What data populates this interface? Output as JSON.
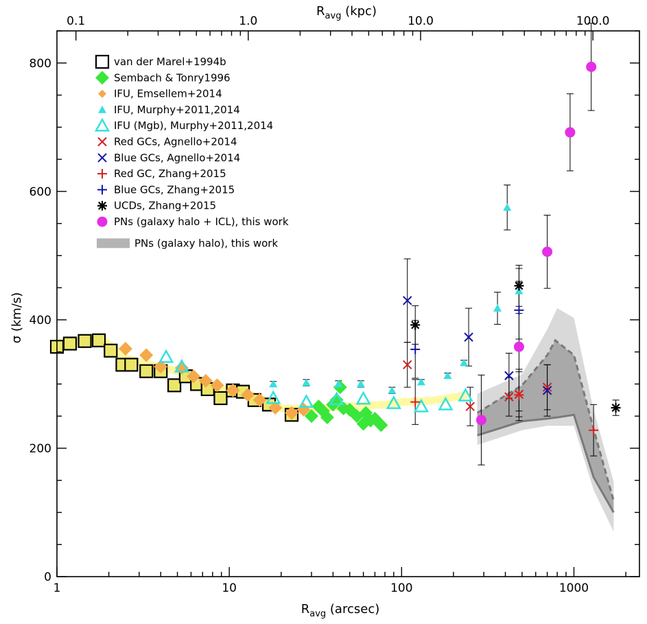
{
  "chart_data": {
    "type": "scatter",
    "title": "",
    "xlabel": "R_avg (arcsec)",
    "xlabel_parts": {
      "main": "R",
      "sub": "avg",
      "unit": " (arcsec)"
    },
    "x2label": "R_avg (kpc)",
    "x2label_parts": {
      "main": "R",
      "sub": "avg",
      "unit": " (kpc)"
    },
    "ylabel": "σ (km/s)",
    "x_scale": "log",
    "xlim": [
      1,
      2400
    ],
    "ylim": [
      0,
      850
    ],
    "x2_scale": "log",
    "x2_per_x": 0.0776,
    "x_ticks": [
      {
        "value": 1,
        "label": "1"
      },
      {
        "value": 10,
        "label": "10"
      },
      {
        "value": 100,
        "label": "100"
      },
      {
        "value": 1000,
        "label": "1000"
      }
    ],
    "x2_ticks": [
      {
        "value": 0.1,
        "label": "0.1"
      },
      {
        "value": 1.0,
        "label": "1.0"
      },
      {
        "value": 10.0,
        "label": "10.0"
      },
      {
        "value": 100.0,
        "label": "100.0"
      }
    ],
    "y_ticks": [
      {
        "value": 0,
        "label": "0"
      },
      {
        "value": 200,
        "label": "200"
      },
      {
        "value": 400,
        "label": "400"
      },
      {
        "value": 600,
        "label": "600"
      },
      {
        "value": 800,
        "label": "800"
      }
    ],
    "y_minor_step": 50,
    "grid": false,
    "legend_position": "top-left",
    "bands": [
      {
        "name": "PNs (galaxy halo), this work",
        "color_light": "#d9d9d9",
        "color_dark": "#a9a9a9",
        "line_color": "#7a7a7a",
        "outer_upper": [
          [
            275,
            285
          ],
          [
            500,
            315
          ],
          [
            700,
            385
          ],
          [
            800,
            418
          ],
          [
            1000,
            403
          ],
          [
            1300,
            260
          ],
          [
            1700,
            148
          ]
        ],
        "outer_lower": [
          [
            275,
            205
          ],
          [
            500,
            228
          ],
          [
            700,
            235
          ],
          [
            800,
            235
          ],
          [
            1000,
            235
          ],
          [
            1300,
            135
          ],
          [
            1700,
            70
          ]
        ],
        "inner_upper": [
          [
            275,
            255
          ],
          [
            500,
            298
          ],
          [
            700,
            345
          ],
          [
            780,
            368
          ],
          [
            1000,
            345
          ],
          [
            1300,
            230
          ],
          [
            1700,
            118
          ]
        ],
        "inner_lower": [
          [
            275,
            220
          ],
          [
            500,
            242
          ],
          [
            700,
            246
          ],
          [
            800,
            248
          ],
          [
            1000,
            252
          ],
          [
            1300,
            155
          ],
          [
            1700,
            100
          ]
        ],
        "dashed_line": [
          [
            275,
            255
          ],
          [
            500,
            298
          ],
          [
            700,
            345
          ],
          [
            780,
            368
          ],
          [
            1000,
            345
          ],
          [
            1300,
            230
          ],
          [
            1700,
            118
          ]
        ],
        "solid_line": [
          [
            275,
            220
          ],
          [
            500,
            242
          ],
          [
            700,
            246
          ],
          [
            800,
            248
          ],
          [
            1000,
            252
          ],
          [
            1300,
            155
          ],
          [
            1700,
            100
          ]
        ]
      }
    ],
    "series": [
      {
        "name": "van der Marel+1994b",
        "marker": "square-open",
        "color": "#000000",
        "fill": "#ebe66a",
        "points": [
          [
            1.0,
            358
          ],
          [
            1.19,
            363
          ],
          [
            1.45,
            367
          ],
          [
            1.75,
            368
          ],
          [
            2.05,
            352
          ],
          [
            2.4,
            330
          ],
          [
            2.7,
            330
          ],
          [
            3.3,
            320
          ],
          [
            4.0,
            320
          ],
          [
            4.8,
            298
          ],
          [
            5.6,
            312
          ],
          [
            6.5,
            300
          ],
          [
            7.5,
            292
          ],
          [
            8.9,
            278
          ],
          [
            10.5,
            290
          ],
          [
            12.0,
            288
          ],
          [
            14.0,
            275
          ],
          [
            17.0,
            268
          ],
          [
            23.0,
            252
          ]
        ]
      },
      {
        "name": "Sembach & Tonry1996",
        "marker": "diamond",
        "color": "#39e639",
        "points": [
          [
            30,
            250
          ],
          [
            33,
            265
          ],
          [
            35,
            258
          ],
          [
            37,
            248
          ],
          [
            40,
            268
          ],
          [
            42,
            275
          ],
          [
            44,
            295
          ],
          [
            46,
            262
          ],
          [
            50,
            260
          ],
          [
            55,
            250
          ],
          [
            60,
            238
          ],
          [
            62,
            255
          ],
          [
            66,
            243
          ],
          [
            70,
            246
          ],
          [
            76,
            236
          ]
        ]
      },
      {
        "name": "IFU, Emsellem+2014",
        "marker": "diamond",
        "color": "#f5a94a",
        "points": [
          [
            2.5,
            355
          ],
          [
            3.3,
            345
          ],
          [
            4.0,
            327
          ],
          [
            5.3,
            325
          ],
          [
            6.2,
            312
          ],
          [
            7.3,
            305
          ],
          [
            8.5,
            298
          ],
          [
            10.5,
            290
          ],
          [
            12.8,
            283
          ],
          [
            15.0,
            275
          ],
          [
            18.5,
            263
          ],
          [
            23.0,
            255
          ],
          [
            27.0,
            260
          ]
        ]
      },
      {
        "name": "IFU, Murphy+2011,2014",
        "marker": "triangle",
        "color": "#35e0e0",
        "points": [
          [
            18,
            300,
            4
          ],
          [
            28,
            302,
            5
          ],
          [
            43,
            300,
            5
          ],
          [
            58,
            300,
            5
          ],
          [
            88,
            290,
            5
          ],
          [
            130,
            303,
            4
          ],
          [
            185,
            313,
            4
          ],
          [
            230,
            333,
            4
          ],
          [
            360,
            418,
            25
          ],
          [
            410,
            575,
            35
          ],
          [
            480,
            445,
            35
          ]
        ]
      },
      {
        "name": "IFU (Mgb), Murphy+2011,2014",
        "marker": "triangle-open",
        "color": "#35e0e0",
        "points": [
          [
            4.3,
            342
          ],
          [
            5.3,
            327
          ],
          [
            18,
            278
          ],
          [
            28,
            272
          ],
          [
            42,
            276
          ],
          [
            60,
            277
          ],
          [
            90,
            270
          ],
          [
            130,
            265
          ],
          [
            180,
            268
          ],
          [
            235,
            282
          ]
        ]
      },
      {
        "name": "Red GCs, Agnello+2014",
        "marker": "x",
        "color": "#d42020",
        "points": [
          [
            108,
            330,
            35
          ],
          [
            250,
            265,
            30
          ],
          [
            420,
            280,
            30
          ],
          [
            480,
            284,
            35
          ],
          [
            700,
            295,
            35
          ]
        ]
      },
      {
        "name": "Blue GCs, Agnello+2014",
        "marker": "x",
        "color": "#1515a8",
        "points": [
          [
            108,
            430,
            65
          ],
          [
            245,
            373,
            45
          ],
          [
            420,
            313,
            35
          ],
          [
            700,
            290,
            40
          ]
        ]
      },
      {
        "name": "Red GC, Zhang+2015",
        "marker": "plus",
        "color": "#d42020",
        "points": [
          [
            120,
            272,
            35
          ],
          [
            480,
            283,
            40
          ],
          [
            1300,
            228,
            40
          ]
        ]
      },
      {
        "name": "Blue GCs, Zhang+2015",
        "marker": "plus",
        "color": "#1515a8",
        "points": [
          [
            120,
            354,
            45
          ],
          [
            480,
            415,
            45
          ]
        ]
      },
      {
        "name": "UCDs, Zhang+2015",
        "marker": "asterisk",
        "color": "#000000",
        "points": [
          [
            120,
            392,
            30
          ],
          [
            480,
            453,
            32
          ],
          [
            1750,
            263,
            12
          ]
        ]
      },
      {
        "name": "PNs (galaxy halo + ICL), this work",
        "marker": "circle",
        "color": "#e52ee5",
        "points": [
          [
            290,
            244,
            70
          ],
          [
            480,
            358,
            100
          ],
          [
            700,
            506,
            57
          ],
          [
            950,
            692,
            60
          ],
          [
            1260,
            794,
            68
          ]
        ]
      }
    ],
    "legend": [
      {
        "label": "van der Marel+1994b",
        "marker": "square-open",
        "color": "#000000"
      },
      {
        "label": "Sembach & Tonry1996",
        "marker": "diamond",
        "color": "#39e639"
      },
      {
        "label": "IFU, Emsellem+2014",
        "marker": "diamond-small",
        "color": "#f5a94a"
      },
      {
        "label": "IFU, Murphy+2011,2014",
        "marker": "triangle",
        "color": "#35e0e0"
      },
      {
        "label": "IFU (Mgb), Murphy+2011,2014",
        "marker": "triangle-open",
        "color": "#35e0e0"
      },
      {
        "label": "Red GCs, Agnello+2014",
        "marker": "x",
        "color": "#d42020"
      },
      {
        "label": "Blue GCs, Agnello+2014",
        "marker": "x",
        "color": "#1515a8"
      },
      {
        "label": "Red GC, Zhang+2015",
        "marker": "plus",
        "color": "#d42020"
      },
      {
        "label": "Blue GCs, Zhang+2015",
        "marker": "plus",
        "color": "#1515a8"
      },
      {
        "label": "UCDs, Zhang+2015",
        "marker": "asterisk",
        "color": "#000000"
      },
      {
        "label": "PNs (galaxy halo + ICL), this work",
        "marker": "circle",
        "color": "#e52ee5"
      },
      {
        "label": "PNs (galaxy halo), this work",
        "marker": "band",
        "color": "#b4b4b4"
      }
    ],
    "highlight_track": {
      "color": "#fff799",
      "points": [
        [
          1.0,
          364
        ],
        [
          1.5,
          368
        ],
        [
          1.9,
          366
        ],
        [
          2.5,
          340
        ],
        [
          3.5,
          330
        ],
        [
          5,
          320
        ],
        [
          7,
          300
        ],
        [
          10,
          290
        ],
        [
          15,
          278
        ],
        [
          20,
          262
        ],
        [
          30,
          262
        ],
        [
          50,
          265
        ],
        [
          80,
          268
        ],
        [
          100,
          272
        ],
        [
          150,
          274
        ],
        [
          230,
          282
        ]
      ]
    }
  }
}
